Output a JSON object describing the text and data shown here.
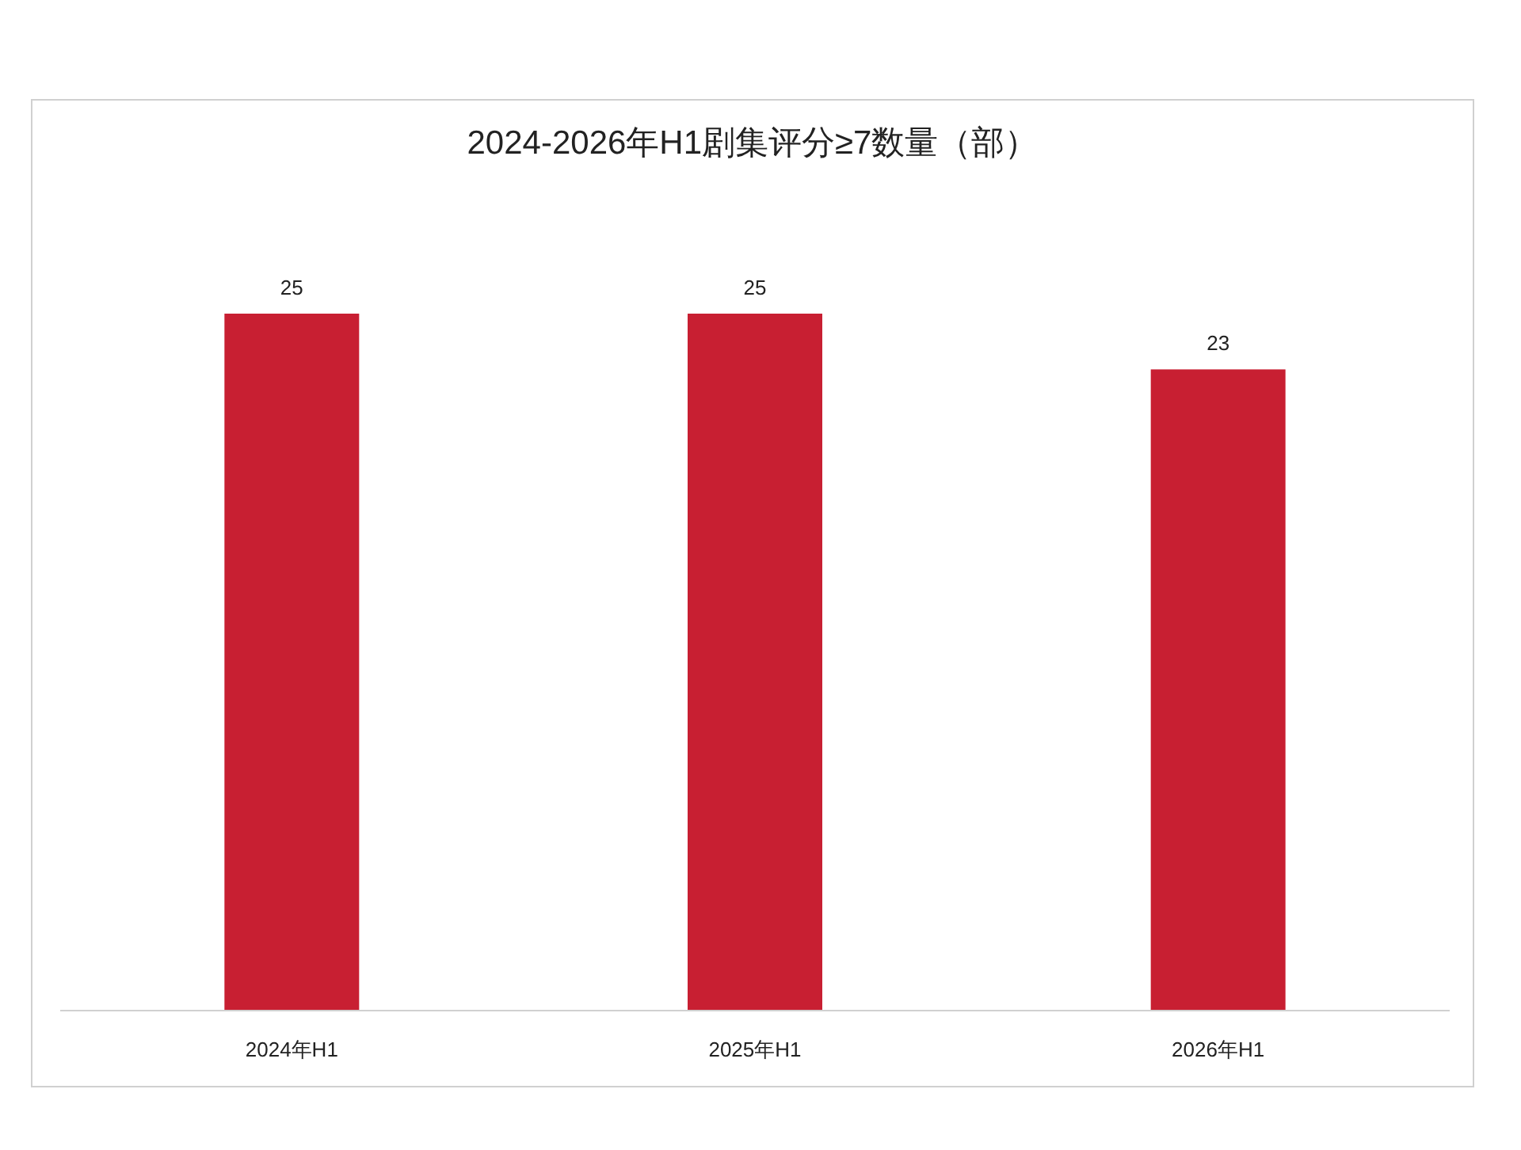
{
  "chart_data": {
    "type": "bar",
    "title": "2024-2026年H1剧集评分≥7数量（部）",
    "categories": [
      "2024年H1",
      "2025年H1",
      "2026年H1"
    ],
    "values": [
      25,
      25,
      23
    ],
    "color": "#c81f32",
    "data_labels": true,
    "tick_labels": "x"
  }
}
